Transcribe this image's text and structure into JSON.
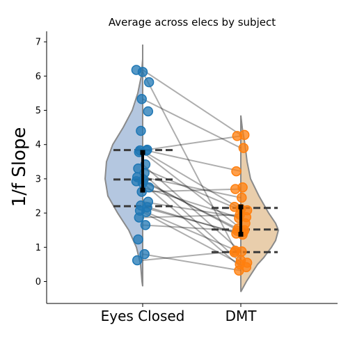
{
  "chart_data": {
    "type": "scatter",
    "title": "Average across elecs by subject",
    "xlabel": "",
    "ylabel": "1/f Slope",
    "categories": [
      "Eyes Closed",
      "DMT"
    ],
    "ylim": [
      -0.65,
      7.3
    ],
    "yticks": [
      0,
      1,
      2,
      3,
      4,
      5,
      6,
      7
    ],
    "grid": false,
    "series": [
      {
        "category": "Eyes Closed",
        "color": "#1f77b4",
        "violin_color": "#b0c4de",
        "values": [
          6.18,
          6.12,
          5.82,
          5.33,
          4.97,
          4.4,
          3.85,
          3.83,
          3.82,
          3.78,
          3.42,
          3.3,
          3.17,
          3.05,
          2.97,
          2.93,
          2.88,
          2.75,
          2.62,
          2.33,
          2.22,
          2.17,
          2.07,
          2.03,
          1.87,
          1.65,
          1.23,
          0.8,
          0.62
        ],
        "mean_sd": {
          "mean": 3.22,
          "low": 2.67,
          "high": 3.77
        },
        "quartiles": [
          2.2,
          2.98,
          3.84
        ]
      },
      {
        "category": "DMT",
        "color": "#ff7f0e",
        "violin_color": "#e8cba8",
        "values": [
          4.28,
          4.25,
          3.9,
          3.22,
          2.75,
          2.7,
          2.45,
          2.18,
          2.12,
          2.08,
          1.95,
          1.88,
          1.85,
          1.7,
          1.55,
          1.5,
          1.48,
          1.45,
          1.4,
          1.37,
          0.9,
          0.88,
          0.85,
          0.62,
          0.55,
          0.5,
          0.42,
          0.32
        ],
        "mean_sd": {
          "mean": 1.78,
          "low": 1.38,
          "high": 2.18
        },
        "quartiles": [
          0.86,
          1.52,
          2.15
        ]
      }
    ],
    "pairs": [
      [
        6.18,
        4.28
      ],
      [
        6.12,
        0.62
      ],
      [
        5.33,
        3.9
      ],
      [
        3.85,
        3.22
      ],
      [
        3.83,
        4.25
      ],
      [
        3.82,
        2.12
      ],
      [
        3.78,
        1.55
      ],
      [
        3.42,
        0.88
      ],
      [
        3.3,
        2.08
      ],
      [
        3.17,
        0.55
      ],
      [
        3.05,
        2.45
      ],
      [
        2.97,
        1.45
      ],
      [
        2.93,
        1.5
      ],
      [
        2.88,
        0.42
      ],
      [
        2.75,
        1.85
      ],
      [
        2.62,
        2.7
      ],
      [
        2.33,
        1.88
      ],
      [
        2.22,
        1.37
      ],
      [
        2.17,
        1.4
      ],
      [
        2.07,
        0.85
      ],
      [
        2.03,
        0.5
      ],
      [
        1.87,
        1.95
      ],
      [
        1.65,
        1.48
      ],
      [
        0.8,
        0.32
      ],
      [
        0.62,
        0.9
      ]
    ]
  }
}
